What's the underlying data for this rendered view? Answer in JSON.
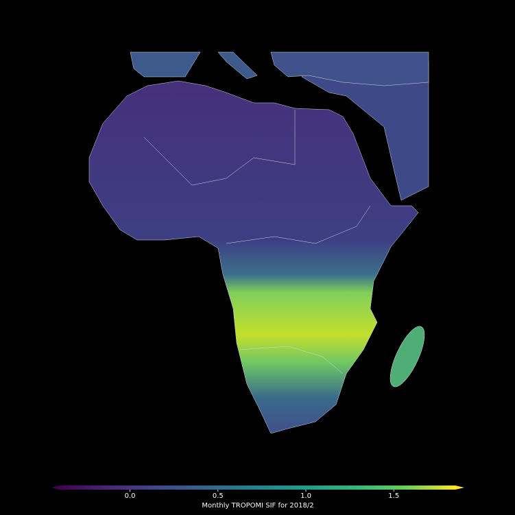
{
  "colorbar": {
    "label": "Monthly TROPOMI SIF for 2018/2",
    "range": [
      -0.4,
      1.85
    ],
    "ticks": [
      {
        "value": 0,
        "label": "0.0"
      },
      {
        "value": 0.5,
        "label": "0.5"
      },
      {
        "value": 1,
        "label": "1.0"
      },
      {
        "value": 1.5,
        "label": "1.5"
      }
    ]
  }
}
